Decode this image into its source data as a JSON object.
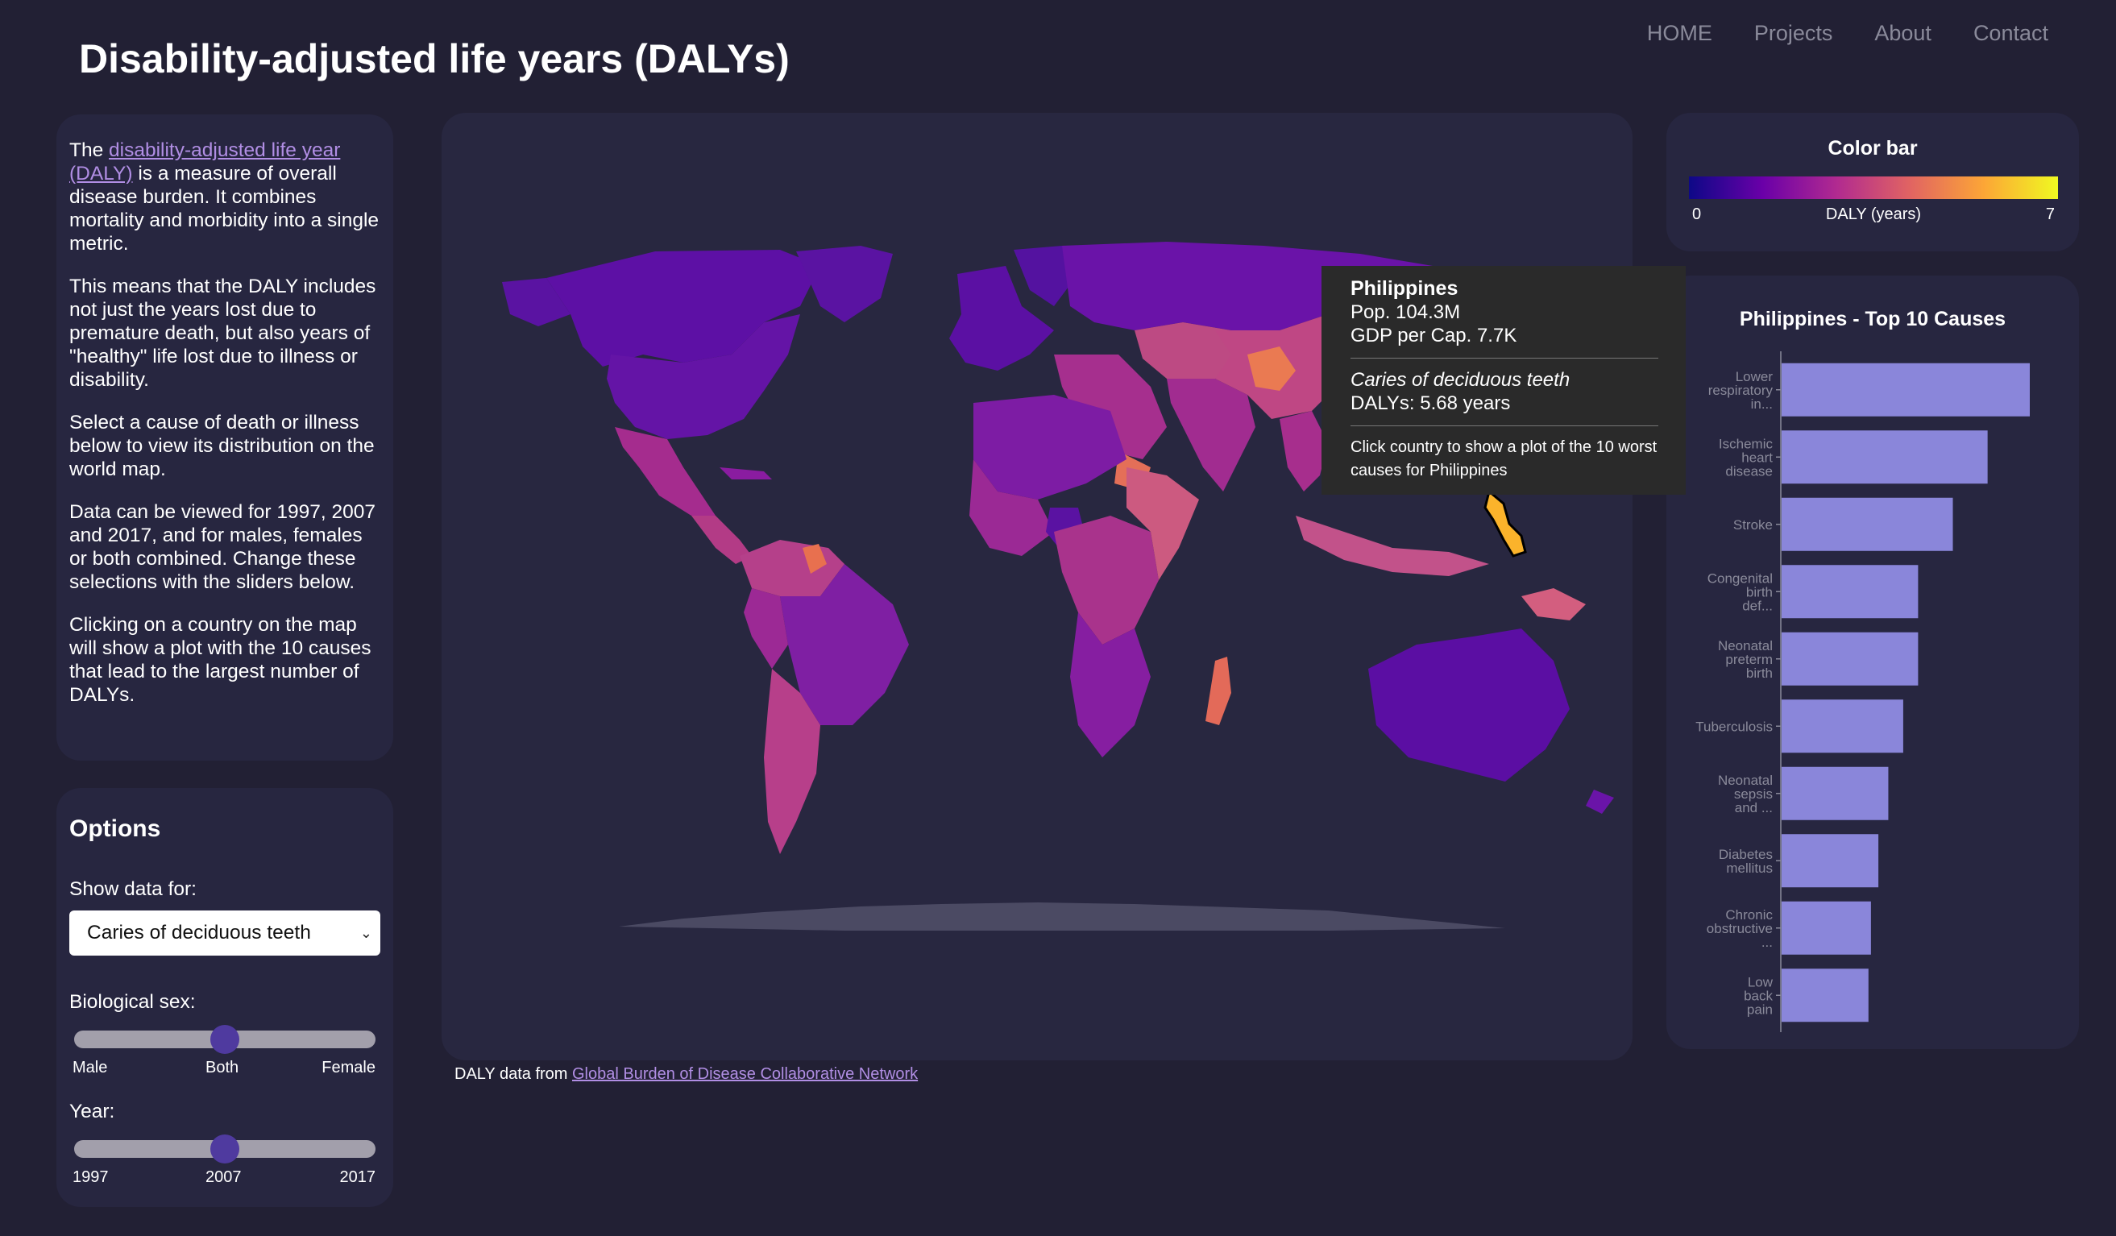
{
  "header": {
    "title": "Disability-adjusted life years (DALYs)"
  },
  "nav": [
    {
      "label": "HOME"
    },
    {
      "label": "Projects"
    },
    {
      "label": "About"
    },
    {
      "label": "Contact"
    }
  ],
  "intro": {
    "p1_prefix": "The ",
    "p1_link": "disability-adjusted life year (DALY)",
    "p1_suffix": " is a measure of overall disease burden. It combines mortality and morbidity into a single metric.",
    "p2": "This means that the DALY includes not just the years lost due to premature death, but also years of \"healthy\" life lost due to illness or disability.",
    "p3": "Select a cause of death or illness below to view its distribution on the world map.",
    "p4": "Data can be viewed for 1997, 2007 and 2017, and for males, females or both combined. Change these selections with the sliders below.",
    "p5": "Clicking on a country on the map will show a plot with the 10 causes that lead to the largest number of DALYs."
  },
  "options": {
    "title": "Options",
    "show_label": "Show data for:",
    "selected_cause": "Caries of deciduous teeth",
    "sex_label": "Biological sex:",
    "sex_ticks": [
      "Male",
      "Both",
      "Female"
    ],
    "sex_value": "Both",
    "year_label": "Year:",
    "year_ticks": [
      "1997",
      "2007",
      "2017"
    ],
    "year_value": "2007"
  },
  "footer": {
    "prefix": "DALY data from ",
    "link": "Global Burden of Disease Collaborative Network"
  },
  "tooltip": {
    "country": "Philippines",
    "pop": "Pop. 104.3M",
    "gdp": "GDP per Cap. 7.7K",
    "cause": "Caries of deciduous teeth",
    "dalys": "DALYs: 5.68 years",
    "hint": "Click country to show a plot of the 10 worst causes for Philippines"
  },
  "colorbar": {
    "title": "Color bar",
    "min": "0",
    "max": "7",
    "label": "DALY (years)",
    "colors": [
      "#0d0887",
      "#6a00a8",
      "#b12a90",
      "#e16462",
      "#fca636",
      "#f0f921"
    ]
  },
  "map_colors": {
    "background": "#282740",
    "antarctica": "#4b4a63",
    "highlight_stroke": "#000000"
  },
  "chart_data": {
    "type": "bar",
    "orientation": "horizontal",
    "title": "Philippines - Top 10 Causes",
    "categories": [
      [
        "Lower",
        "respiratory",
        "in..."
      ],
      [
        "Ischemic",
        "heart",
        "disease"
      ],
      [
        "Stroke"
      ],
      [
        "Congenital",
        "birth",
        "def..."
      ],
      [
        "Neonatal",
        "preterm",
        "birth"
      ],
      [
        "Tuberculosis"
      ],
      [
        "Neonatal",
        "sepsis",
        "and ..."
      ],
      [
        "Diabetes",
        "mellitus"
      ],
      [
        "Chronic",
        "obstructive",
        "..."
      ],
      [
        "Low",
        "back",
        "pain"
      ]
    ],
    "values": [
      100,
      83,
      69,
      55,
      55,
      49,
      43,
      39,
      36,
      35
    ],
    "bar_color": "#8a86da",
    "xlim": [
      0,
      100
    ],
    "xlabel": "",
    "ylabel": ""
  }
}
